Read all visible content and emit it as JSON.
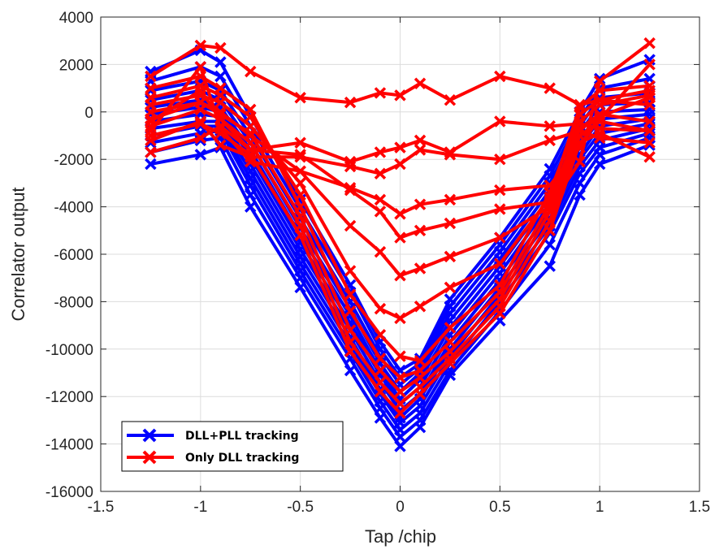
{
  "chart_data": {
    "type": "line",
    "xlabel": "Tap /chip",
    "ylabel": "Correlator output",
    "xlim": [
      -1.5,
      1.5
    ],
    "ylim": [
      -16000,
      4000
    ],
    "x_ticks": [
      -1.5,
      -1,
      -0.5,
      0,
      0.5,
      1,
      1.5
    ],
    "x_tick_labels": [
      "-1.5",
      "-1",
      "-0.5",
      "0",
      "0.5",
      "1",
      "1.5"
    ],
    "y_ticks": [
      -16000,
      -14000,
      -12000,
      -10000,
      -8000,
      -6000,
      -4000,
      -2000,
      0,
      2000,
      4000
    ],
    "y_tick_labels": [
      "-16000",
      "-14000",
      "-12000",
      "-10000",
      "-8000",
      "-6000",
      "-4000",
      "-2000",
      "0",
      "2000",
      "4000"
    ],
    "grid": true,
    "legend_position": "bottom-left",
    "marker": "x",
    "x": [
      -1.25,
      -1,
      -0.9,
      -0.75,
      -0.5,
      -0.25,
      -0.1,
      0,
      0.1,
      0.25,
      0.5,
      0.75,
      0.9,
      1,
      1.25
    ],
    "series": [
      {
        "name": "DLL+PLL tracking",
        "color": "#0000ff",
        "traces": [
          [
            -2200,
            -1800,
            -1500,
            -4000,
            -7400,
            -10900,
            -12900,
            -14100,
            -13300,
            -11100,
            -8800,
            -6500,
            -3500,
            -2200,
            -1400
          ],
          [
            -1700,
            -1200,
            -1100,
            -3500,
            -7000,
            -10400,
            -12500,
            -13700,
            -13000,
            -10900,
            -8400,
            -5600,
            -3000,
            -1800,
            -1100
          ],
          [
            -1300,
            -900,
            -800,
            -3100,
            -6700,
            -10100,
            -12200,
            -13400,
            -12700,
            -10600,
            -8000,
            -5100,
            -2600,
            -1500,
            -900
          ],
          [
            -1000,
            -600,
            -600,
            -2800,
            -6400,
            -9800,
            -11900,
            -13100,
            -12400,
            -10300,
            -7700,
            -4800,
            -2300,
            -1200,
            -700
          ],
          [
            -700,
            -400,
            -400,
            -2500,
            -6100,
            -9500,
            -11700,
            -12900,
            -12100,
            -10000,
            -7400,
            -4500,
            -2000,
            -900,
            -500
          ],
          [
            -400,
            -100,
            -200,
            -2200,
            -5800,
            -9200,
            -11400,
            -12600,
            -11900,
            -9700,
            -7100,
            -4200,
            -1800,
            -600,
            -300
          ],
          [
            -100,
            200,
            0,
            -1900,
            -5500,
            -8900,
            -11100,
            -12300,
            -11600,
            -9400,
            -6800,
            -3900,
            -1500,
            -300,
            -100
          ],
          [
            200,
            500,
            200,
            -1600,
            -5200,
            -8600,
            -10900,
            -12100,
            -11300,
            -9100,
            -6500,
            -3600,
            -1200,
            0,
            100
          ],
          [
            500,
            900,
            500,
            -1300,
            -4900,
            -8300,
            -10600,
            -11800,
            -11000,
            -8800,
            -6200,
            -3300,
            -900,
            300,
            400
          ],
          [
            900,
            1300,
            900,
            -1000,
            -4500,
            -8000,
            -10300,
            -11500,
            -10800,
            -8500,
            -5900,
            -3000,
            -600,
            600,
            800
          ],
          [
            1300,
            1900,
            1500,
            -600,
            -4100,
            -7600,
            -10000,
            -11200,
            -10600,
            -8200,
            -5600,
            -2700,
            -300,
            1000,
            1400
          ],
          [
            1700,
            2600,
            2100,
            -200,
            -3700,
            -7300,
            -9700,
            -10900,
            -10400,
            -7900,
            -5300,
            -2400,
            0,
            1400,
            2200
          ]
        ]
      },
      {
        "name": "Only DLL tracking",
        "color": "#ff0000",
        "traces": [
          [
            1500,
            2800,
            2700,
            1700,
            600,
            400,
            800,
            700,
            1200,
            500,
            1500,
            1000,
            300,
            500,
            300
          ],
          [
            -1700,
            -1100,
            -600,
            -1600,
            -1300,
            -2100,
            -1700,
            -1500,
            -1200,
            -1700,
            -400,
            -600,
            -500,
            -700,
            -800
          ],
          [
            -1200,
            -400,
            -1400,
            -1900,
            -1900,
            -2300,
            -2600,
            -2200,
            -1600,
            -1800,
            -2000,
            -1200,
            -800,
            -1100,
            -1300
          ],
          [
            -800,
            1900,
            -700,
            -2100,
            -2500,
            -3200,
            -3700,
            -4300,
            -3900,
            -3700,
            -3300,
            -3100,
            -1500,
            -200,
            600
          ],
          [
            -400,
            900,
            -300,
            -1600,
            -1800,
            -3300,
            -4200,
            -5300,
            -5000,
            -4700,
            -4100,
            -3800,
            -700,
            -300,
            2000
          ],
          [
            0,
            400,
            0,
            -1000,
            -2500,
            -4800,
            -5900,
            -6900,
            -6600,
            -6100,
            -5300,
            -4000,
            -2100,
            1300,
            2900
          ],
          [
            300,
            700,
            400,
            -600,
            -3000,
            -6700,
            -8300,
            -8700,
            -8200,
            -7400,
            -6400,
            -3600,
            200,
            900,
            1100
          ],
          [
            600,
            1100,
            700,
            -200,
            -3500,
            -7700,
            -9400,
            -10300,
            -10500,
            -9100,
            -7300,
            -3400,
            -100,
            500,
            900
          ],
          [
            1000,
            1500,
            1000,
            100,
            -4000,
            -8400,
            -10400,
            -11200,
            -10900,
            -9700,
            -7600,
            -3900,
            -400,
            300,
            700
          ],
          [
            -300,
            400,
            -100,
            -900,
            -4400,
            -9200,
            -10900,
            -11800,
            -11200,
            -10100,
            -7900,
            -4200,
            -700,
            -100,
            -400
          ],
          [
            -600,
            100,
            -300,
            -1300,
            -4800,
            -9700,
            -11400,
            -12300,
            -11600,
            -10400,
            -8200,
            -4600,
            -1000,
            -400,
            -800
          ],
          [
            -1000,
            -500,
            -900,
            -1800,
            -5200,
            -10100,
            -11800,
            -12700,
            -11900,
            -10600,
            -8500,
            -5000,
            -1300,
            -900,
            -1900
          ]
        ]
      }
    ]
  }
}
